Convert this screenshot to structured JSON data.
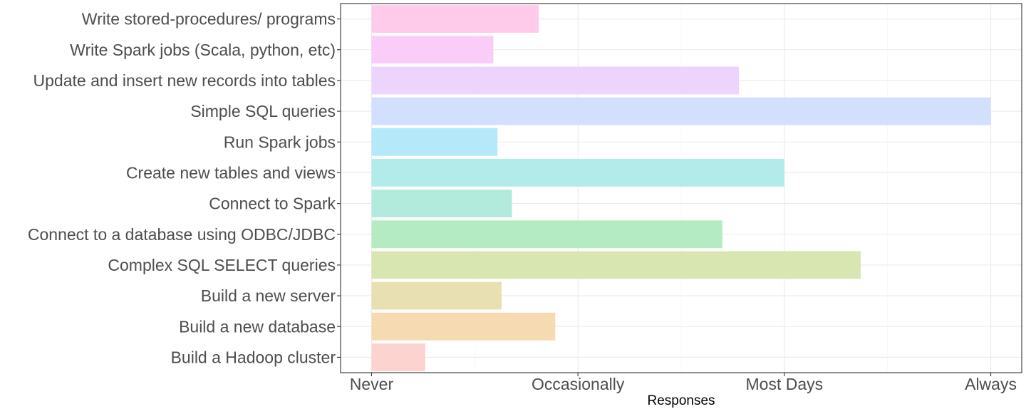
{
  "chart_data": {
    "type": "bar",
    "orientation": "horizontal",
    "xlabel": "Responses",
    "ylabel": "",
    "x_ticks": [
      "Never",
      "Occasionally",
      "Most Days",
      "Always"
    ],
    "xlim": [
      -0.15,
      3.15
    ],
    "grid": true,
    "legend": "none",
    "categories": [
      "Write stored-procedures/ programs",
      "Write Spark jobs (Scala, python, etc)",
      "Update and insert new records into tables",
      "Simple SQL queries",
      "Run Spark jobs",
      "Create new tables and views",
      "Connect to Spark",
      "Connect to a database using ODBC/JDBC",
      "Complex SQL SELECT queries",
      "Build a new server",
      "Build a new database",
      "Build a Hadoop cluster"
    ],
    "values": [
      0.81,
      0.59,
      1.78,
      3.0,
      0.61,
      2.0,
      0.68,
      1.7,
      2.37,
      0.63,
      0.89,
      0.26
    ],
    "colors": [
      "#ffcbeb",
      "#f9cdf7",
      "#edd4fd",
      "#d2e0fd",
      "#b5e8f8",
      "#b3ebeb",
      "#b2eadb",
      "#b5ebc2",
      "#d8e6b2",
      "#e8e0b2",
      "#f6dab2",
      "#fdd3cf"
    ]
  }
}
